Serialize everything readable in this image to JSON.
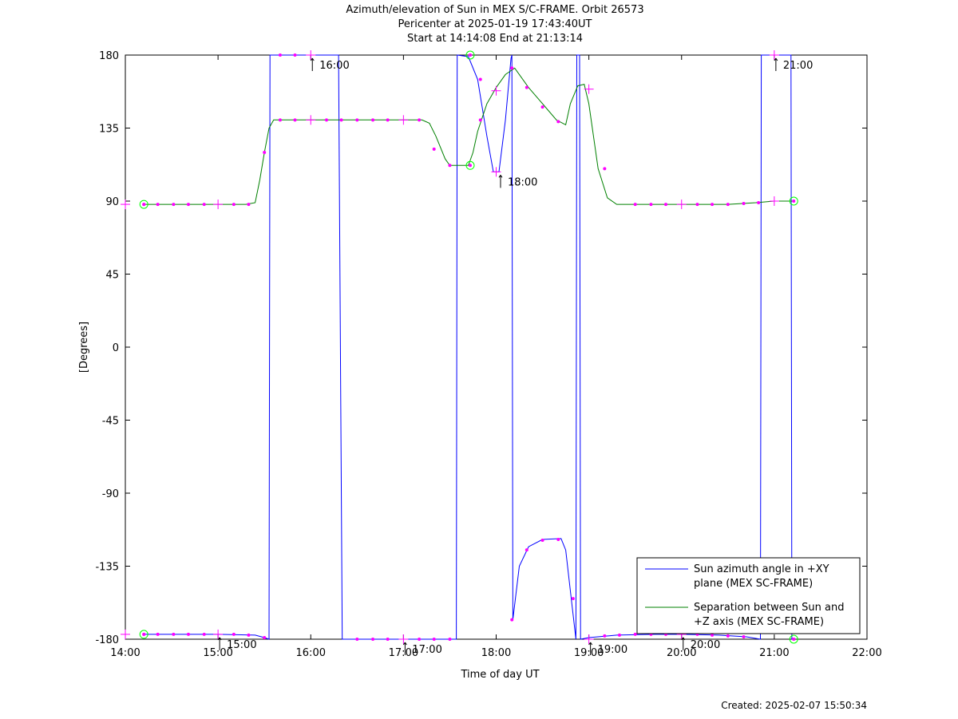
{
  "title_lines": [
    "Azimuth/elevation of Sun in MEX S/C-FRAME.  Orbit 26573",
    "Pericenter at 2025-01-19 17:43:40UT",
    "Start at 14:14:08 End at 21:13:14"
  ],
  "created": "Created: 2025-02-07 15:50:34",
  "chart_data": {
    "type": "line",
    "xlabel": "Time of day UT",
    "ylabel": "[Degrees]",
    "xlim": [
      14,
      22
    ],
    "ylim": [
      -180,
      180
    ],
    "x_ticks": [
      {
        "v": 14,
        "label": "14:00"
      },
      {
        "v": 15,
        "label": "15:00"
      },
      {
        "v": 16,
        "label": "16:00"
      },
      {
        "v": 17,
        "label": "17:00"
      },
      {
        "v": 18,
        "label": "18:00"
      },
      {
        "v": 19,
        "label": "19:00"
      },
      {
        "v": 20,
        "label": "20:00"
      },
      {
        "v": 21,
        "label": "21:00"
      },
      {
        "v": 22,
        "label": "22:00"
      }
    ],
    "y_ticks": [
      {
        "v": 180,
        "label": "180"
      },
      {
        "v": 135,
        "label": "135"
      },
      {
        "v": 90,
        "label": "90"
      },
      {
        "v": 45,
        "label": "45"
      },
      {
        "v": 0,
        "label": "0"
      },
      {
        "v": -45,
        "label": "-45"
      },
      {
        "v": -90,
        "label": "-90"
      },
      {
        "v": -135,
        "label": "-135"
      },
      {
        "v": -180,
        "label": "-180"
      }
    ],
    "legend_position": "bottom-right",
    "series": [
      {
        "name_lines": [
          "Sun azimuth angle in +XY",
          "plane (MEX SC-FRAME)"
        ],
        "color": "#0000ff",
        "points": [
          [
            14.2,
            -177
          ],
          [
            14.6,
            -177
          ],
          [
            15.0,
            -177
          ],
          [
            15.4,
            -177.5
          ],
          [
            15.5,
            -179
          ],
          [
            15.55,
            -180
          ],
          [
            15.56,
            180
          ],
          [
            15.8,
            180
          ],
          [
            16.0,
            180
          ],
          [
            16.3,
            180
          ],
          [
            16.34,
            -180
          ],
          [
            16.6,
            -180
          ],
          [
            17.0,
            -180
          ],
          [
            17.4,
            -180
          ],
          [
            17.57,
            -180
          ],
          [
            17.58,
            180
          ],
          [
            17.7,
            179
          ],
          [
            17.8,
            165
          ],
          [
            17.9,
            130
          ],
          [
            17.97,
            108
          ],
          [
            18.03,
            108
          ],
          [
            18.1,
            140
          ],
          [
            18.16,
            178
          ],
          [
            18.17,
            180
          ],
          [
            18.18,
            -168
          ],
          [
            18.25,
            -135
          ],
          [
            18.35,
            -123
          ],
          [
            18.5,
            -118.5
          ],
          [
            18.7,
            -118
          ],
          [
            18.75,
            -125
          ],
          [
            18.8,
            -150
          ],
          [
            18.86,
            -180
          ],
          [
            18.87,
            180
          ],
          [
            18.9,
            180
          ],
          [
            18.91,
            -180
          ],
          [
            19.0,
            -179
          ],
          [
            19.3,
            -177.5
          ],
          [
            19.7,
            -177
          ],
          [
            20.0,
            -177
          ],
          [
            20.4,
            -177.5
          ],
          [
            20.7,
            -178.5
          ],
          [
            20.85,
            -180
          ],
          [
            20.86,
            180
          ],
          [
            21.0,
            180
          ],
          [
            21.18,
            180
          ],
          [
            21.19,
            -180
          ],
          [
            21.21,
            -180
          ]
        ]
      },
      {
        "name_lines": [
          "Separation between Sun and",
          "+Z axis (MEX SC-FRAME)"
        ],
        "color": "#008000",
        "points": [
          [
            14.2,
            88
          ],
          [
            14.8,
            88
          ],
          [
            15.3,
            88
          ],
          [
            15.4,
            89
          ],
          [
            15.45,
            103
          ],
          [
            15.5,
            120
          ],
          [
            15.55,
            135
          ],
          [
            15.6,
            140
          ],
          [
            16.0,
            140
          ],
          [
            16.5,
            140
          ],
          [
            17.0,
            140
          ],
          [
            17.2,
            140
          ],
          [
            17.28,
            138
          ],
          [
            17.35,
            130
          ],
          [
            17.45,
            116
          ],
          [
            17.5,
            112
          ],
          [
            17.55,
            112
          ],
          [
            17.7,
            112
          ],
          [
            17.75,
            120
          ],
          [
            17.8,
            133
          ],
          [
            17.9,
            150
          ],
          [
            18.0,
            160
          ],
          [
            18.1,
            168
          ],
          [
            18.2,
            172
          ],
          [
            18.35,
            160
          ],
          [
            18.5,
            150
          ],
          [
            18.65,
            140
          ],
          [
            18.75,
            137
          ],
          [
            18.8,
            150
          ],
          [
            18.88,
            161
          ],
          [
            18.95,
            162
          ],
          [
            19.0,
            150
          ],
          [
            19.1,
            110
          ],
          [
            19.2,
            92
          ],
          [
            19.3,
            88
          ],
          [
            19.5,
            88
          ],
          [
            20.0,
            88
          ],
          [
            20.5,
            88
          ],
          [
            20.8,
            89
          ],
          [
            21.0,
            90
          ],
          [
            21.21,
            90
          ]
        ]
      }
    ],
    "markers": {
      "color": "#ff00ff",
      "dots": [
        [
          14.2,
          -177
        ],
        [
          14.35,
          -177
        ],
        [
          14.52,
          -177
        ],
        [
          14.68,
          -177
        ],
        [
          14.85,
          -177
        ],
        [
          15.17,
          -177
        ],
        [
          15.33,
          -177.5
        ],
        [
          15.5,
          -179
        ],
        [
          14.2,
          88
        ],
        [
          14.35,
          88
        ],
        [
          14.52,
          88
        ],
        [
          14.68,
          88
        ],
        [
          14.85,
          88
        ],
        [
          15.17,
          88
        ],
        [
          15.33,
          88
        ],
        [
          15.5,
          120
        ],
        [
          15.67,
          140
        ],
        [
          15.83,
          140
        ],
        [
          16.17,
          140
        ],
        [
          16.33,
          140
        ],
        [
          16.5,
          140
        ],
        [
          16.67,
          140
        ],
        [
          16.83,
          140
        ],
        [
          17.17,
          140
        ],
        [
          17.33,
          122
        ],
        [
          17.5,
          112
        ],
        [
          15.67,
          180
        ],
        [
          15.83,
          180
        ],
        [
          16.5,
          -180
        ],
        [
          16.67,
          -180
        ],
        [
          16.83,
          -180
        ],
        [
          17.17,
          -180
        ],
        [
          17.33,
          -180
        ],
        [
          17.5,
          -180
        ],
        [
          17.83,
          165
        ],
        [
          17.83,
          140
        ],
        [
          18.17,
          172
        ],
        [
          18.33,
          160
        ],
        [
          18.5,
          148
        ],
        [
          18.67,
          139
        ],
        [
          18.17,
          -168
        ],
        [
          18.33,
          -125
        ],
        [
          18.5,
          -119
        ],
        [
          18.67,
          -118.5
        ],
        [
          18.83,
          -155
        ],
        [
          19.17,
          110
        ],
        [
          19.5,
          88
        ],
        [
          19.67,
          88
        ],
        [
          19.83,
          88
        ],
        [
          20.17,
          88
        ],
        [
          20.33,
          88
        ],
        [
          20.5,
          88
        ],
        [
          20.67,
          88.5
        ],
        [
          20.83,
          89
        ],
        [
          19.17,
          -178
        ],
        [
          19.33,
          -177.5
        ],
        [
          19.5,
          -177
        ],
        [
          19.67,
          -177
        ],
        [
          19.83,
          -177
        ],
        [
          20.17,
          -177
        ],
        [
          20.33,
          -177.5
        ],
        [
          20.5,
          -178
        ],
        [
          20.67,
          -178.5
        ]
      ],
      "crosses": [
        [
          14.0,
          -177
        ],
        [
          15.0,
          -177
        ],
        [
          14.0,
          88
        ],
        [
          15.0,
          88
        ],
        [
          16.0,
          180
        ],
        [
          16.0,
          140
        ],
        [
          17.0,
          140
        ],
        [
          17.0,
          -180
        ],
        [
          18.0,
          158
        ],
        [
          18.0,
          108
        ],
        [
          19.0,
          159
        ],
        [
          19.0,
          -180
        ],
        [
          20.0,
          88
        ],
        [
          20.0,
          -177
        ],
        [
          21.0,
          90
        ],
        [
          21.0,
          180
        ]
      ],
      "circles": [
        [
          14.2,
          88
        ],
        [
          14.2,
          -177
        ],
        [
          17.72,
          180
        ],
        [
          17.72,
          112
        ],
        [
          21.21,
          90
        ],
        [
          21.21,
          -180
        ]
      ]
    },
    "time_annotations": [
      {
        "label": "15:00",
        "x": 15.0,
        "y": -177
      },
      {
        "label": "16:00",
        "x": 16.0,
        "y": 180
      },
      {
        "label": "17:00",
        "x": 17.0,
        "y": -180
      },
      {
        "label": "18:00",
        "x": 18.03,
        "y": 108
      },
      {
        "label": "19:00",
        "x": 19.0,
        "y": -180
      },
      {
        "label": "20:00",
        "x": 20.0,
        "y": -177
      },
      {
        "label": "21:00",
        "x": 21.0,
        "y": 180
      }
    ]
  }
}
